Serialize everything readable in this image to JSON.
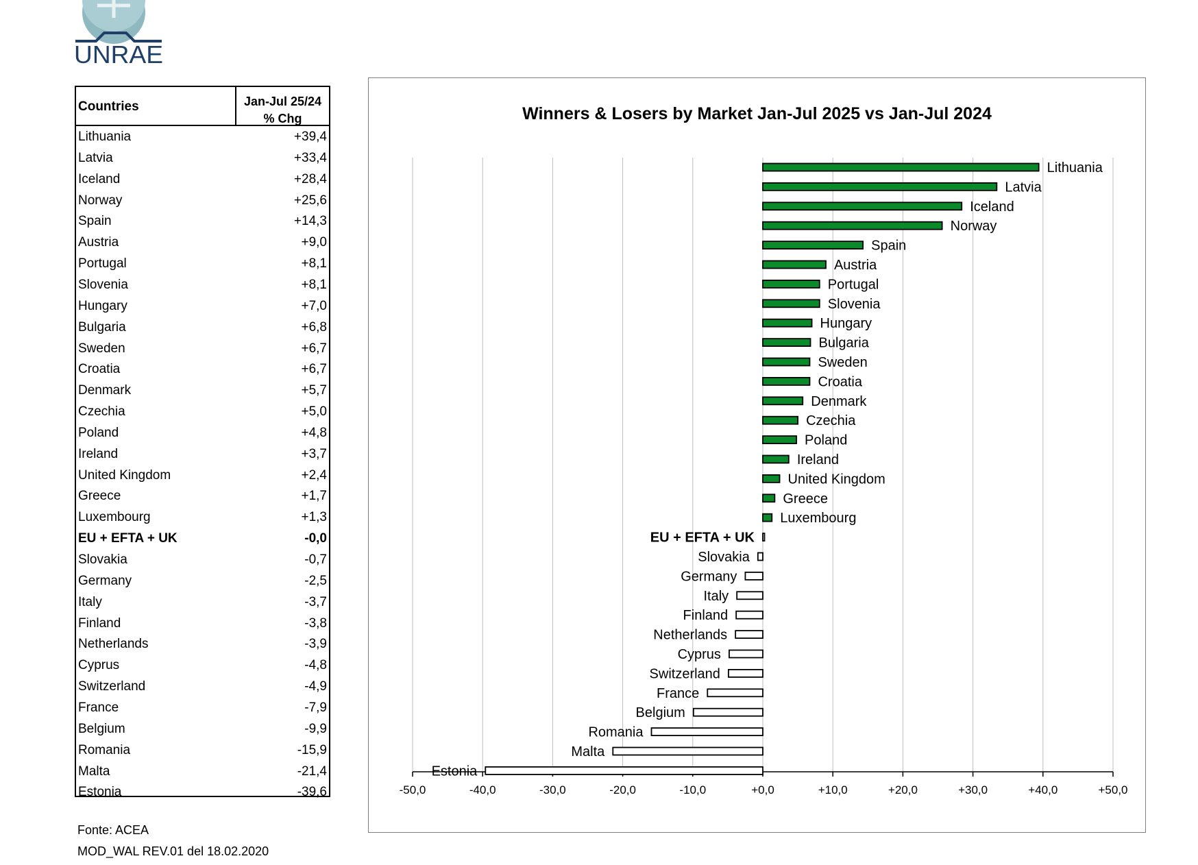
{
  "logo": {
    "text": "UNRAE"
  },
  "table": {
    "header_country": "Countries",
    "header_value_line1": "Jan-Jul 25/24",
    "header_value_line2": "% Chg",
    "rows": [
      {
        "country": "Lithuania",
        "value": "+39,4"
      },
      {
        "country": "Latvia",
        "value": "+33,4"
      },
      {
        "country": "Iceland",
        "value": "+28,4"
      },
      {
        "country": "Norway",
        "value": "+25,6"
      },
      {
        "country": "Spain",
        "value": "+14,3"
      },
      {
        "country": "Austria",
        "value": "+9,0"
      },
      {
        "country": "Portugal",
        "value": "+8,1"
      },
      {
        "country": "Slovenia",
        "value": "+8,1"
      },
      {
        "country": "Hungary",
        "value": "+7,0"
      },
      {
        "country": "Bulgaria",
        "value": "+6,8"
      },
      {
        "country": "Sweden",
        "value": "+6,7"
      },
      {
        "country": "Croatia",
        "value": "+6,7"
      },
      {
        "country": "Denmark",
        "value": "+5,7"
      },
      {
        "country": "Czechia",
        "value": "+5,0"
      },
      {
        "country": "Poland",
        "value": "+4,8"
      },
      {
        "country": "Ireland",
        "value": "+3,7"
      },
      {
        "country": "United Kingdom",
        "value": "+2,4"
      },
      {
        "country": "Greece",
        "value": "+1,7"
      },
      {
        "country": "Luxembourg",
        "value": "+1,3"
      },
      {
        "country": "EU + EFTA + UK",
        "value": "-0,0",
        "bold": true
      },
      {
        "country": "Slovakia",
        "value": "-0,7"
      },
      {
        "country": "Germany",
        "value": "-2,5"
      },
      {
        "country": "Italy",
        "value": "-3,7"
      },
      {
        "country": "Finland",
        "value": "-3,8"
      },
      {
        "country": "Netherlands",
        "value": "-3,9"
      },
      {
        "country": "Cyprus",
        "value": "-4,8"
      },
      {
        "country": "Switzerland",
        "value": "-4,9"
      },
      {
        "country": "France",
        "value": "-7,9"
      },
      {
        "country": "Belgium",
        "value": "-9,9"
      },
      {
        "country": "Romania",
        "value": "-15,9"
      },
      {
        "country": "Malta",
        "value": "-21,4"
      },
      {
        "country": "Estonia",
        "value": "-39,6"
      }
    ]
  },
  "chart_data": {
    "type": "bar",
    "orientation": "horizontal",
    "title": "Winners & Losers by Market  Jan-Jul 2025 vs Jan-Jul 2024",
    "categories": [
      "Lithuania",
      "Latvia",
      "Iceland",
      "Norway",
      "Spain",
      "Austria",
      "Portugal",
      "Slovenia",
      "Hungary",
      "Bulgaria",
      "Sweden",
      "Croatia",
      "Denmark",
      "Czechia",
      "Poland",
      "Ireland",
      "United Kingdom",
      "Greece",
      "Luxembourg",
      "EU + EFTA + UK",
      "Slovakia",
      "Germany",
      "Italy",
      "Finland",
      "Netherlands",
      "Cyprus",
      "Switzerland",
      "France",
      "Belgium",
      "Romania",
      "Malta",
      "Estonia"
    ],
    "values": [
      39.4,
      33.4,
      28.4,
      25.6,
      14.3,
      9.0,
      8.1,
      8.1,
      7.0,
      6.8,
      6.7,
      6.7,
      5.7,
      5.0,
      4.8,
      3.7,
      2.4,
      1.7,
      1.3,
      -0.0,
      -0.7,
      -2.5,
      -3.7,
      -3.8,
      -3.9,
      -4.8,
      -4.9,
      -7.9,
      -9.9,
      -15.9,
      -21.4,
      -39.6
    ],
    "bold_categories": [
      "EU + EFTA + UK"
    ],
    "xlim": [
      -50,
      50
    ],
    "xticks": [
      -50,
      -40,
      -30,
      -20,
      -10,
      0,
      10,
      20,
      30,
      40,
      50
    ],
    "xtick_labels": [
      "-50,0",
      "-40,0",
      "-30,0",
      "-20,0",
      "-10,0",
      "+0,0",
      "+10,0",
      "+20,0",
      "+30,0",
      "+40,0",
      "+50,0"
    ],
    "grid": true,
    "colors": {
      "positive": "#0a8a2a",
      "negative": "#ffffff",
      "outline": "#000000",
      "grid": "#bdbdbd"
    }
  },
  "footer": {
    "source": "Fonte: ACEA",
    "doc_ref": "MOD_WAL REV.01 del 18.02.2020"
  }
}
